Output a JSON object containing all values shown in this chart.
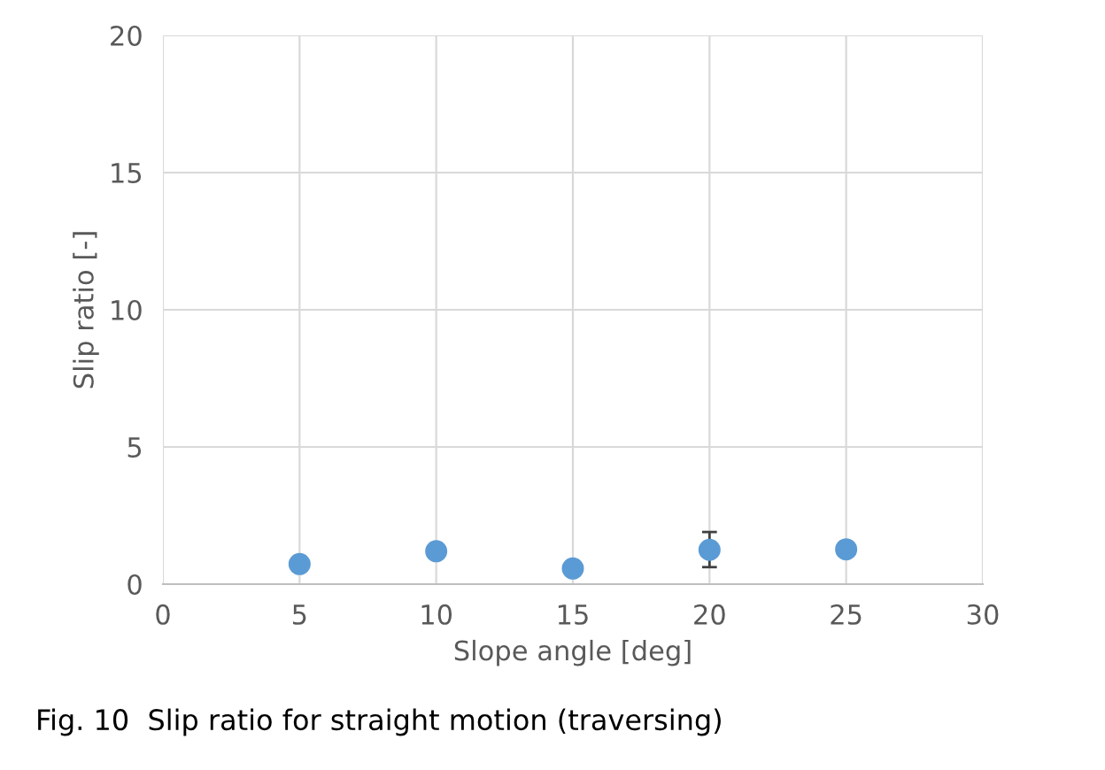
{
  "chart_data": {
    "type": "scatter",
    "xlabel": "Slope angle [deg]",
    "ylabel": "Slip ratio [-]",
    "x": [
      5,
      10,
      15,
      20,
      25
    ],
    "values": [
      0.73,
      1.2,
      0.57,
      1.25,
      1.27
    ],
    "errors": [
      null,
      null,
      null,
      [
        0.62,
        1.9
      ],
      null
    ],
    "color": "#5b9bd5",
    "marker": "circle",
    "xlim": [
      0,
      30
    ],
    "xticks": [
      0,
      5,
      10,
      15,
      20,
      25,
      30
    ],
    "ylim": [
      0,
      20
    ],
    "yticks": [
      0,
      5,
      10,
      15,
      20
    ],
    "grid": true,
    "annotations": [
      "Fig. 10  Slip ratio for straight motion (traversing)"
    ]
  }
}
